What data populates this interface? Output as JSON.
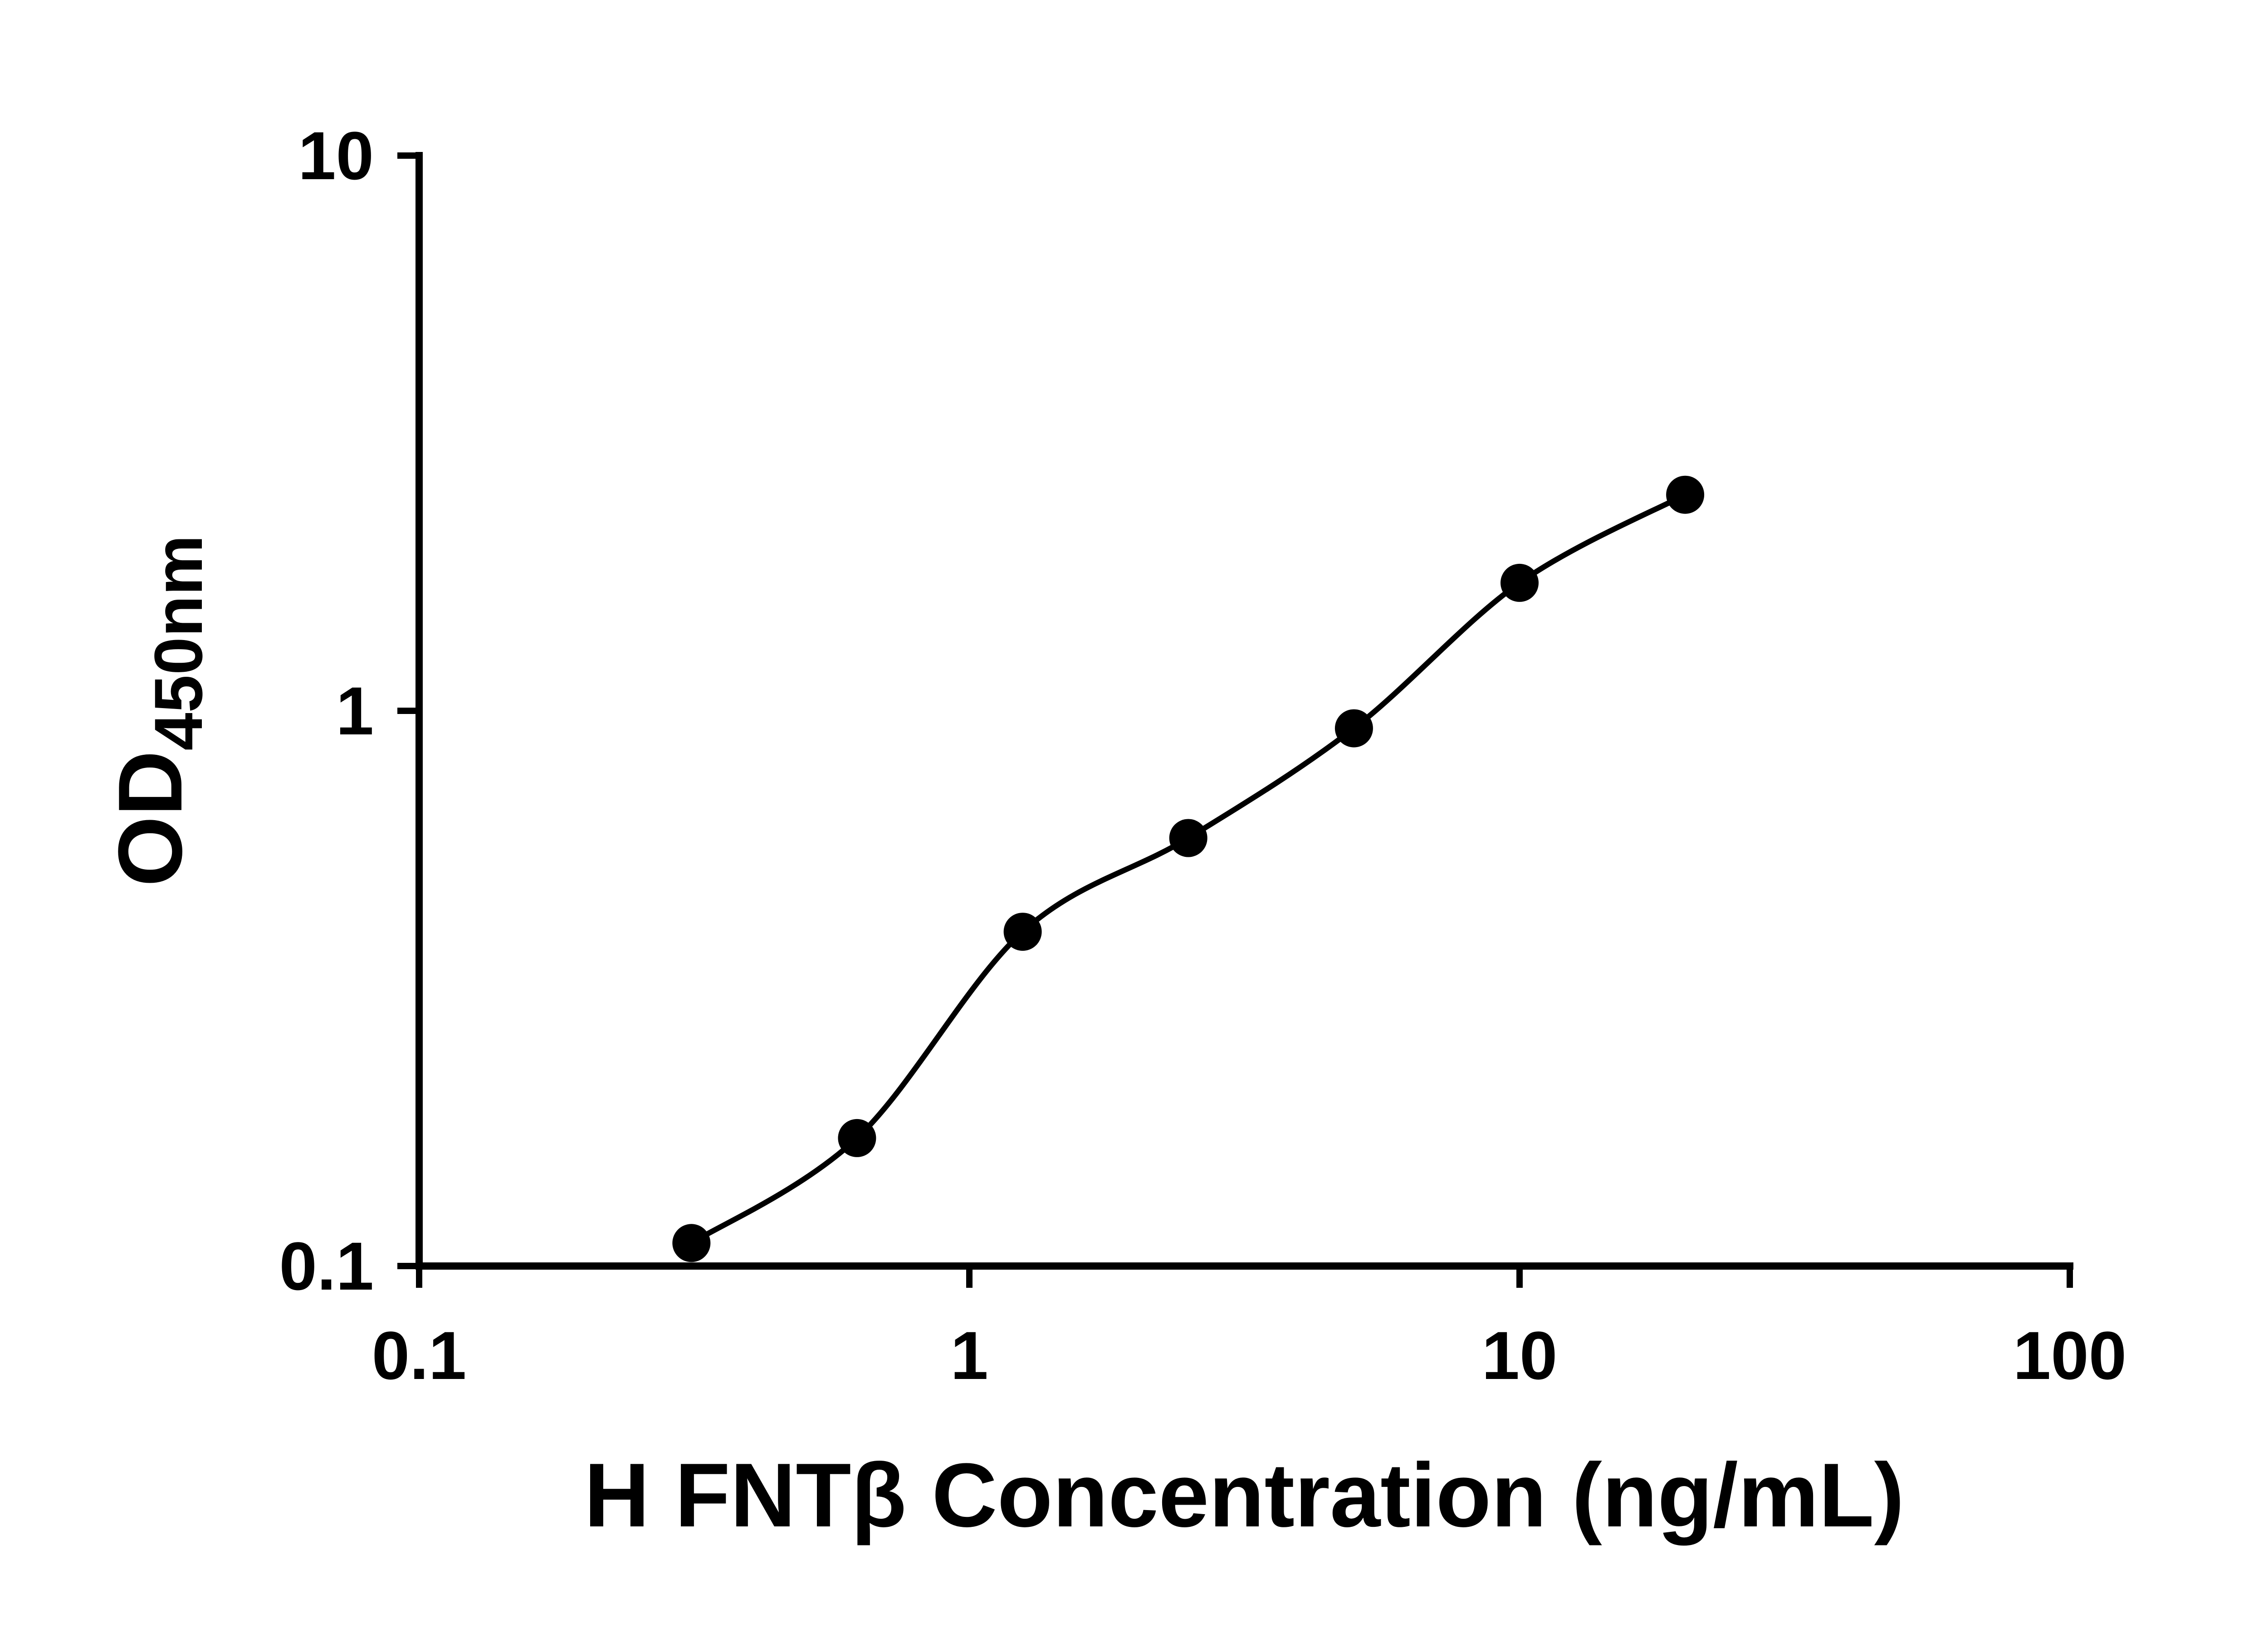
{
  "chart_data": {
    "type": "scatter",
    "title": "",
    "xlabel": "H FNTβ Concentration (ng/mL)",
    "ylabel_main": "OD",
    "ylabel_sub": "450nm",
    "x_scale": "log",
    "y_scale": "log",
    "xlim": [
      0.1,
      100
    ],
    "ylim": [
      0.1,
      10
    ],
    "x_ticks": {
      "values": [
        0.1,
        1,
        10,
        100
      ],
      "labels": [
        "0.1",
        "1",
        "10",
        "100"
      ]
    },
    "y_ticks": {
      "values": [
        0.1,
        1,
        10
      ],
      "labels": [
        "0.1",
        "1",
        "10"
      ]
    },
    "series": [
      {
        "x": [
          0.3125,
          0.625,
          1.25,
          2.5,
          5,
          10,
          20
        ],
        "y": [
          0.11,
          0.17,
          0.4,
          0.59,
          0.93,
          1.7,
          2.45
        ],
        "marker": "circle",
        "fit_line": true
      }
    ],
    "marker_color": "#000000",
    "line_color": "#000000",
    "axis_color": "#000000",
    "background": "#ffffff",
    "grid": false,
    "legend": "none"
  }
}
